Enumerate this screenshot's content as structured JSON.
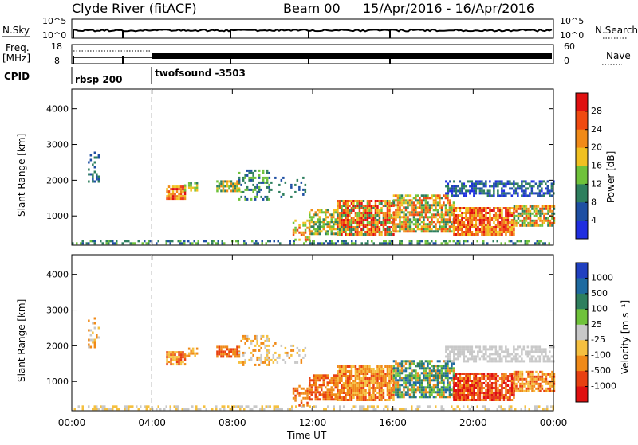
{
  "header": {
    "station": "Clyde River (fitACF)",
    "beam": "Beam 00",
    "dates": "15/Apr/2016 - 16/Apr/2016"
  },
  "panels": {
    "nsky_label": "N.Sky",
    "nsky_ticks": [
      "10^5",
      "10^0"
    ],
    "nsearch_ticks": [
      "10^5",
      "10^0"
    ],
    "nsearch_label": "N.Search",
    "freq_label": "Freq.",
    "freq_unit": "[MHz]",
    "freq_ticks": [
      "18",
      "8"
    ],
    "nave_ticks": [
      "60",
      "0"
    ],
    "nave_label": "Nave",
    "cpid_label": "CPID",
    "cpid_blocks": [
      "rbsp 200",
      "twofsound -3503"
    ]
  },
  "colors": {
    "power_scale": [
      "#1f2ee0",
      "#1e4fa3",
      "#2e7f5e",
      "#6fc23a",
      "#f0c020",
      "#f08a18",
      "#f04a10",
      "#e01010"
    ],
    "velocity_scale": [
      "#2040c0",
      "#1e6aa0",
      "#2e7f5e",
      "#6fc23a",
      "#c8c8c8",
      "#f5c040",
      "#f08a18",
      "#e84010",
      "#e01010"
    ]
  },
  "chart_data": [
    {
      "type": "heatmap",
      "title": "Power",
      "ylabel": "Slant Range [km]",
      "colorbar_label": "Power [dB]",
      "colorbar_ticks": [
        "28",
        "24",
        "20",
        "16",
        "12",
        "8",
        "4"
      ],
      "ylim": [
        180,
        4550
      ],
      "yticks": [
        "4000",
        "3000",
        "2000",
        "1000"
      ],
      "xlim": [
        0,
        24
      ],
      "xticks": [
        "00:00",
        "04:00",
        "08:00",
        "12:00",
        "16:00",
        "20:00",
        "00:00"
      ],
      "regions": [
        {
          "t0": 0.0,
          "t1": 24.0,
          "r0": 200,
          "r1": 330,
          "density": 0.45,
          "mix": [
            1,
            2,
            3
          ]
        },
        {
          "t0": 0.8,
          "t1": 1.3,
          "r0": 1950,
          "r1": 2800,
          "density": 0.2,
          "mix": [
            1,
            2
          ]
        },
        {
          "t0": 4.7,
          "t1": 5.6,
          "r0": 1450,
          "r1": 1850,
          "density": 0.85,
          "mix": [
            4,
            5,
            6,
            7
          ]
        },
        {
          "t0": 5.6,
          "t1": 6.2,
          "r0": 1700,
          "r1": 1950,
          "density": 0.6,
          "mix": [
            2,
            3,
            4
          ]
        },
        {
          "t0": 7.2,
          "t1": 8.3,
          "r0": 1700,
          "r1": 2000,
          "density": 0.7,
          "mix": [
            2,
            3,
            4,
            5
          ]
        },
        {
          "t0": 8.3,
          "t1": 9.8,
          "r0": 1450,
          "r1": 2300,
          "density": 0.35,
          "mix": [
            1,
            2,
            3
          ]
        },
        {
          "t0": 9.8,
          "t1": 11.6,
          "r0": 1500,
          "r1": 2100,
          "density": 0.2,
          "mix": [
            1,
            2
          ]
        },
        {
          "t0": 11.0,
          "t1": 11.8,
          "r0": 350,
          "r1": 900,
          "density": 0.4,
          "mix": [
            3,
            4,
            5,
            6
          ]
        },
        {
          "t0": 11.8,
          "t1": 13.2,
          "r0": 500,
          "r1": 1200,
          "density": 0.7,
          "mix": [
            2,
            3,
            4,
            5
          ]
        },
        {
          "t0": 13.2,
          "t1": 16.0,
          "r0": 450,
          "r1": 1450,
          "density": 0.85,
          "mix": [
            2,
            3,
            4,
            5,
            6,
            7
          ]
        },
        {
          "t0": 16.0,
          "t1": 19.0,
          "r0": 550,
          "r1": 1600,
          "density": 0.75,
          "mix": [
            2,
            3,
            4,
            5,
            6
          ]
        },
        {
          "t0": 19.0,
          "t1": 22.0,
          "r0": 450,
          "r1": 1250,
          "density": 0.85,
          "mix": [
            4,
            5,
            6,
            7
          ]
        },
        {
          "t0": 22.0,
          "t1": 24.0,
          "r0": 750,
          "r1": 1300,
          "density": 0.75,
          "mix": [
            2,
            3,
            4,
            5,
            6
          ]
        },
        {
          "t0": 18.6,
          "t1": 24.0,
          "r0": 1550,
          "r1": 2000,
          "density": 0.6,
          "mix": [
            0,
            1,
            2
          ]
        }
      ]
    },
    {
      "type": "heatmap",
      "title": "Velocity",
      "ylabel": "Slant Range [km]",
      "colorbar_label": "Velocity [m s⁻¹]",
      "colorbar_ticks": [
        "1000",
        "500",
        "100",
        "25",
        "-25",
        "-100",
        "-500",
        "-1000"
      ],
      "ylim": [
        180,
        4550
      ],
      "yticks": [
        "4000",
        "3000",
        "2000",
        "1000"
      ],
      "xlim": [
        0,
        24
      ],
      "xticks": [
        "00:00",
        "04:00",
        "08:00",
        "12:00",
        "16:00",
        "20:00",
        "00:00"
      ],
      "xlabel": "Time UT",
      "regions": [
        {
          "t0": 0.0,
          "t1": 24.0,
          "r0": 200,
          "r1": 330,
          "density": 0.4,
          "mix": [
            4,
            5
          ]
        },
        {
          "t0": 0.8,
          "t1": 1.3,
          "r0": 1950,
          "r1": 2800,
          "density": 0.2,
          "mix": [
            4,
            5,
            6
          ]
        },
        {
          "t0": 4.7,
          "t1": 5.6,
          "r0": 1450,
          "r1": 1850,
          "density": 0.85,
          "mix": [
            5,
            6,
            7
          ]
        },
        {
          "t0": 5.6,
          "t1": 6.2,
          "r0": 1700,
          "r1": 1950,
          "density": 0.6,
          "mix": [
            5,
            6
          ]
        },
        {
          "t0": 7.2,
          "t1": 8.3,
          "r0": 1700,
          "r1": 2000,
          "density": 0.7,
          "mix": [
            6,
            7
          ]
        },
        {
          "t0": 8.3,
          "t1": 9.8,
          "r0": 1450,
          "r1": 2300,
          "density": 0.35,
          "mix": [
            4,
            5,
            6
          ]
        },
        {
          "t0": 9.8,
          "t1": 11.6,
          "r0": 1500,
          "r1": 2100,
          "density": 0.2,
          "mix": [
            4,
            5,
            6
          ]
        },
        {
          "t0": 11.0,
          "t1": 11.8,
          "r0": 350,
          "r1": 900,
          "density": 0.4,
          "mix": [
            6,
            7
          ]
        },
        {
          "t0": 11.8,
          "t1": 13.2,
          "r0": 500,
          "r1": 1200,
          "density": 0.7,
          "mix": [
            6,
            7
          ]
        },
        {
          "t0": 13.2,
          "t1": 16.0,
          "r0": 450,
          "r1": 1450,
          "density": 0.85,
          "mix": [
            6,
            7,
            6,
            5
          ]
        },
        {
          "t0": 16.0,
          "t1": 19.0,
          "r0": 550,
          "r1": 1600,
          "density": 0.75,
          "mix": [
            2,
            3,
            6,
            1
          ]
        },
        {
          "t0": 19.0,
          "t1": 22.0,
          "r0": 450,
          "r1": 1250,
          "density": 0.85,
          "mix": [
            6,
            7,
            8
          ]
        },
        {
          "t0": 22.0,
          "t1": 24.0,
          "r0": 750,
          "r1": 1300,
          "density": 0.75,
          "mix": [
            6,
            7,
            5
          ]
        },
        {
          "t0": 18.6,
          "t1": 24.0,
          "r0": 1550,
          "r1": 2000,
          "density": 0.6,
          "mix": [
            4
          ]
        }
      ]
    }
  ]
}
